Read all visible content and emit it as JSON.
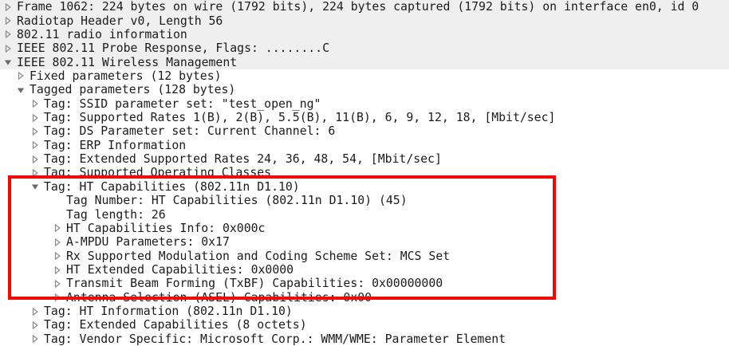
{
  "colors": {
    "pane_background": "#ffffff",
    "shaded_band_background": "#efefef",
    "text": "#1b1b1b",
    "expander_collapsed_stroke": "#8a8a8a",
    "expander_expanded_fill": "#6b6b6b",
    "annotation_box": "#f40606"
  },
  "tree": {
    "rows": [
      {
        "level": 0,
        "expander": "collapsed",
        "shaded": true,
        "text": "Frame 1062: 224 bytes on wire (1792 bits), 224 bytes captured (1792 bits) on interface en0, id 0"
      },
      {
        "level": 0,
        "expander": "collapsed",
        "shaded": true,
        "text": "Radiotap Header v0, Length 56"
      },
      {
        "level": 0,
        "expander": "collapsed",
        "shaded": true,
        "text": "802.11 radio information"
      },
      {
        "level": 0,
        "expander": "collapsed",
        "shaded": true,
        "text": "IEEE 802.11 Probe Response, Flags: ........C"
      },
      {
        "level": 0,
        "expander": "expanded",
        "shaded": true,
        "text": "IEEE 802.11 Wireless Management"
      },
      {
        "level": 1,
        "expander": "collapsed",
        "shaded": false,
        "text": "Fixed parameters (12 bytes)"
      },
      {
        "level": 1,
        "expander": "expanded",
        "shaded": false,
        "text": "Tagged parameters (128 bytes)"
      },
      {
        "level": 2,
        "expander": "collapsed",
        "shaded": false,
        "text": "Tag: SSID parameter set: \"test_open_ng\""
      },
      {
        "level": 2,
        "expander": "collapsed",
        "shaded": false,
        "text": "Tag: Supported Rates 1(B), 2(B), 5.5(B), 11(B), 6, 9, 12, 18, [Mbit/sec]"
      },
      {
        "level": 2,
        "expander": "collapsed",
        "shaded": false,
        "text": "Tag: DS Parameter set: Current Channel: 6"
      },
      {
        "level": 2,
        "expander": "collapsed",
        "shaded": false,
        "text": "Tag: ERP Information"
      },
      {
        "level": 2,
        "expander": "collapsed",
        "shaded": false,
        "text": "Tag: Extended Supported Rates 24, 36, 48, 54, [Mbit/sec]"
      },
      {
        "level": 2,
        "expander": "collapsed",
        "shaded": false,
        "text": "Tag: Supported Operating Classes"
      },
      {
        "level": 2,
        "expander": "expanded",
        "shaded": false,
        "text": "Tag: HT Capabilities (802.11n D1.10)"
      },
      {
        "level": 3,
        "expander": "none",
        "shaded": false,
        "text": "Tag Number: HT Capabilities (802.11n D1.10) (45)"
      },
      {
        "level": 3,
        "expander": "none",
        "shaded": false,
        "text": "Tag length: 26"
      },
      {
        "level": 3,
        "expander": "collapsed",
        "shaded": false,
        "text": "HT Capabilities Info: 0x000c"
      },
      {
        "level": 3,
        "expander": "collapsed",
        "shaded": false,
        "text": "A-MPDU Parameters: 0x17"
      },
      {
        "level": 3,
        "expander": "collapsed",
        "shaded": false,
        "text": "Rx Supported Modulation and Coding Scheme Set: MCS Set"
      },
      {
        "level": 3,
        "expander": "collapsed",
        "shaded": false,
        "text": "HT Extended Capabilities: 0x0000"
      },
      {
        "level": 3,
        "expander": "collapsed",
        "shaded": false,
        "text": "Transmit Beam Forming (TxBF) Capabilities: 0x00000000"
      },
      {
        "level": 3,
        "expander": "collapsed",
        "shaded": false,
        "text": "Antenna Selection (ASEL) Capabilities: 0x00"
      },
      {
        "level": 2,
        "expander": "collapsed",
        "shaded": false,
        "text": "Tag: HT Information (802.11n D1.10)"
      },
      {
        "level": 2,
        "expander": "collapsed",
        "shaded": false,
        "text": "Tag: Extended Capabilities (8 octets)"
      },
      {
        "level": 2,
        "expander": "collapsed",
        "shaded": false,
        "text": "Tag: Vendor Specific: Microsoft Corp.: WMM/WME: Parameter Element"
      }
    ]
  }
}
